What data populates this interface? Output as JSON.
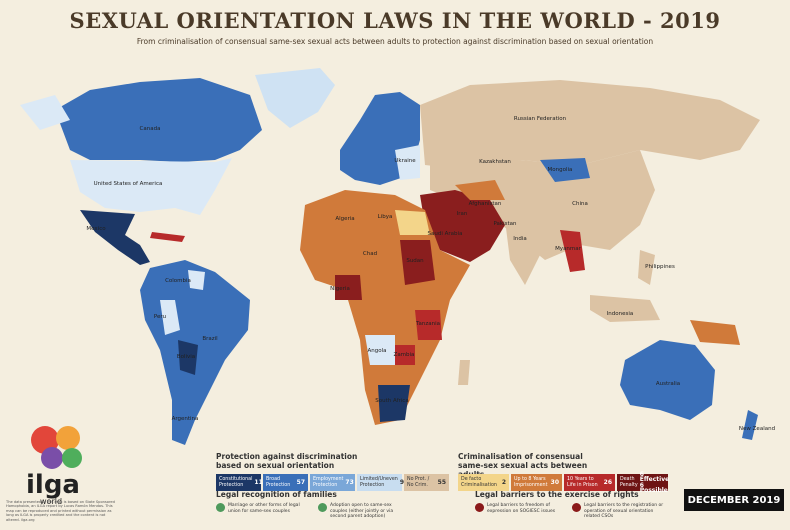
{
  "header": {
    "title": "SEXUAL ORIENTATION LAWS IN THE WORLD - 2019",
    "subtitle": "From criminalisation of consensual same-sex sexual acts between adults to protection against discrimination based on sexual orientation"
  },
  "countries": [
    "Canada",
    "United States of America",
    "Mexico",
    "Colombia",
    "Peru",
    "Brazil",
    "Bolivia",
    "Argentina",
    "Russian Federation",
    "Kazakhstan",
    "Mongolia",
    "China",
    "India",
    "Iran",
    "Afghanistan",
    "Pakistan",
    "Saudi Arabia",
    "Algeria",
    "Libya",
    "Chad",
    "Sudan",
    "Nigeria",
    "Tanzania",
    "Zambia",
    "Angola",
    "South Africa",
    "Myanmar",
    "Philippines",
    "Indonesia",
    "Australia",
    "New Zealand",
    "Ukraine"
  ],
  "legend": {
    "protection": {
      "title": "Protection against discrimination based on sexual orientation",
      "items": [
        {
          "label": "Constitutional Protection",
          "count": "11"
        },
        {
          "label": "Broad Protection",
          "count": "57"
        },
        {
          "label": "Employment Protection",
          "count": "73"
        },
        {
          "label": "Limited/Uneven Protection",
          "count": "9"
        },
        {
          "label": "No Prot. / No Crim.",
          "count": "55"
        }
      ]
    },
    "criminalisation": {
      "title": "Criminalisation of consensual same-sex sexual acts between adults",
      "items": [
        {
          "label": "De facto Criminalisation",
          "count": "2"
        },
        {
          "label": "Up to 8 Years Imprisonment",
          "count": "30"
        },
        {
          "label": "10 Years to Life in Prison",
          "count": "26"
        },
        {
          "label": "Death Penalty",
          "count": "6 Effective 6 Possible"
        }
      ]
    },
    "families": {
      "title": "Legal recognition of families",
      "items": [
        "Marriage or other forms of legal union for same-sex couples",
        "Adoption open to same-sex couples (either jointly or via second parent adoption)"
      ]
    },
    "barriers": {
      "title": "Legal barriers to the exercise of rights",
      "items": [
        "Legal barriers to freedom of expression on SOGIESC issues",
        "Legal barriers to the registration or operation of sexual orientation related CSOs"
      ]
    }
  },
  "badge": "DECEMBER 2019",
  "logo": {
    "name": "ilga",
    "sub": "world"
  },
  "footnote": "The data presented in this map is based on State Sponsored Homophobia, an ILGA report by Lucas Ramón Mendos. This map can be reproduced and printed without permission as long as ILGA is properly credited and the content is not altered. ilga.org"
}
